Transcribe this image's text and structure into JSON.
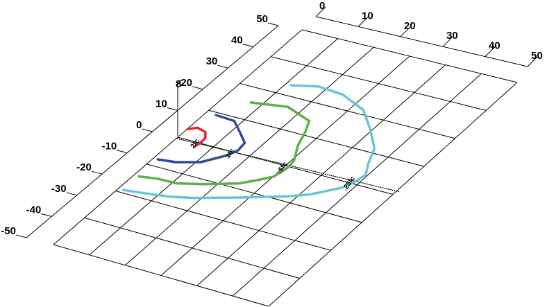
{
  "chart_data": {
    "type": "3d-contour-plot",
    "x_axis": {
      "ticks": [
        "0",
        "10",
        "20",
        "30",
        "40",
        "50"
      ],
      "range": [
        0,
        50
      ]
    },
    "y_axis": {
      "ticks": [
        "-50",
        "-40",
        "-30",
        "-20",
        "-10",
        "0",
        "10",
        "20",
        "30",
        "40",
        "50"
      ],
      "range": [
        -50,
        50
      ]
    },
    "z_axis": {
      "ticks": [
        "8"
      ]
    },
    "grid": true,
    "grid_cells": {
      "x": 6,
      "y": 8
    },
    "contours": [
      {
        "label": "2fc",
        "color": "#e8262a",
        "points": [
          [
            0,
            4
          ],
          [
            1,
            5.3
          ],
          [
            2.5,
            4.5
          ],
          [
            3.3,
            2.5
          ],
          [
            3.4,
            0.5
          ],
          [
            3.2,
            -1
          ]
        ]
      },
      {
        "label": "1fc",
        "color": "#2e4a9c",
        "points": [
          [
            1.5,
            11
          ],
          [
            4.5,
            10.5
          ],
          [
            6.8,
            7
          ],
          [
            8.7,
            4
          ],
          [
            8.9,
            1
          ],
          [
            8.3,
            -1.5
          ],
          [
            6,
            -6
          ],
          [
            3,
            -8
          ],
          [
            0.5,
            -8.5
          ]
        ]
      },
      {
        "label": ".5fc",
        "color": "#5db044",
        "points": [
          [
            4,
            18
          ],
          [
            9,
            19.5
          ],
          [
            13.5,
            16.5
          ],
          [
            14.5,
            12.5
          ],
          [
            15.4,
            7.5
          ],
          [
            17,
            2
          ],
          [
            17.2,
            -1
          ],
          [
            16.7,
            -5
          ],
          [
            15.5,
            -7
          ],
          [
            13.5,
            -10
          ],
          [
            9.5,
            -13
          ],
          [
            6,
            -15
          ],
          [
            3,
            -15
          ],
          [
            0.5,
            -15.7
          ]
        ]
      },
      {
        "label": ".25fc",
        "color": "#66c5d6",
        "points": [
          [
            6.5,
            27
          ],
          [
            10,
            28.8
          ],
          [
            14,
            28
          ],
          [
            18.5,
            24.5
          ],
          [
            22,
            18.5
          ],
          [
            25,
            12.5
          ],
          [
            26.3,
            7
          ],
          [
            27.5,
            3
          ],
          [
            27.2,
            0
          ],
          [
            26.5,
            -3
          ],
          [
            23.5,
            -8
          ],
          [
            21,
            -10.5
          ],
          [
            15,
            -15
          ],
          [
            10,
            -18.5
          ],
          [
            7,
            -20
          ],
          [
            3,
            -21
          ],
          [
            0.5,
            -21.5
          ]
        ]
      }
    ],
    "label_positions": [
      {
        "label": "2fc",
        "x": 3.2,
        "y": -0.5
      },
      {
        "label": "1fc",
        "x": 8.7,
        "y": -1
      },
      {
        "label": ".5fc",
        "x": 16.9,
        "y": -1.5
      },
      {
        "label": ".25fc",
        "x": 27.0,
        "y": -1.5
      }
    ]
  }
}
